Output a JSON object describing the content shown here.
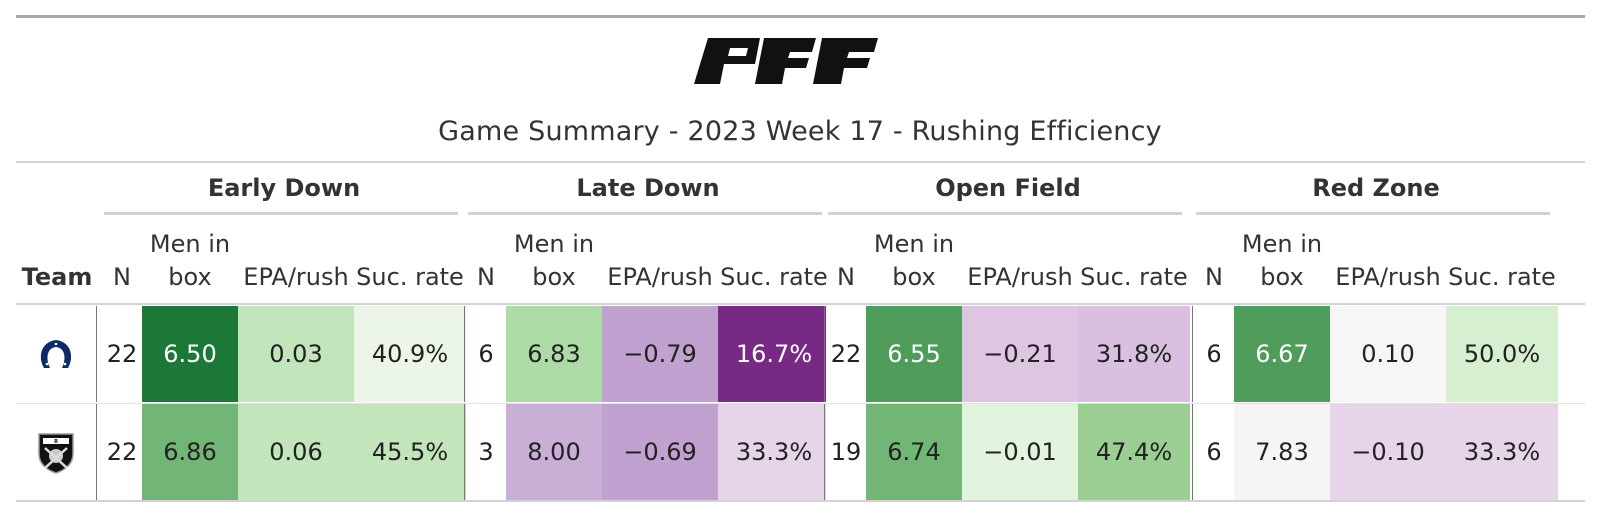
{
  "brand": "PFF",
  "title": "Game Summary - 2023 Week 17 - Rushing Efficiency",
  "team_header": "Team",
  "groups": [
    "Early Down",
    "Late Down",
    "Open Field",
    "Red Zone"
  ],
  "subheaders": {
    "n": "N",
    "men_in_box_line1": "Men in",
    "men_in_box_line2": "box",
    "epa": "EPA/rush",
    "suc": "Suc. rate"
  },
  "rows": [
    {
      "team": "Indianapolis Colts",
      "logo_icon": "colts-horseshoe-icon",
      "cells": [
        [
          "22",
          "6.50",
          "0.03",
          "40.9%"
        ],
        [
          "6",
          "6.83",
          "−0.79",
          "16.7%"
        ],
        [
          "22",
          "6.55",
          "−0.21",
          "31.8%"
        ],
        [
          "6",
          "6.67",
          "0.10",
          "50.0%"
        ]
      ],
      "colors": [
        [
          "#ffffff",
          "#1b7837",
          "#c3e5bc",
          "#ebf6e8"
        ],
        [
          "#ffffff",
          "#acdba5",
          "#c0a1d0",
          "#762a83"
        ],
        [
          "#ffffff",
          "#4f9c5b",
          "#dec6e3",
          "#dac0e0"
        ],
        [
          "#ffffff",
          "#4f9c5b",
          "#f6f6f6",
          "#d6efd1"
        ]
      ]
    },
    {
      "team": "Las Vegas Raiders",
      "logo_icon": "raiders-shield-icon",
      "cells": [
        [
          "22",
          "6.86",
          "0.06",
          "45.5%"
        ],
        [
          "3",
          "8.00",
          "−0.69",
          "33.3%"
        ],
        [
          "19",
          "6.74",
          "−0.01",
          "47.4%"
        ],
        [
          "6",
          "7.83",
          "−0.10",
          "33.3%"
        ]
      ],
      "colors": [
        [
          "#ffffff",
          "#71b674",
          "#c3e5bc",
          "#c3e5bc"
        ],
        [
          "#ffffff",
          "#c9afd6",
          "#c0a1d0",
          "#e6d5e9"
        ],
        [
          "#ffffff",
          "#71b674",
          "#e2f3de",
          "#9ace93"
        ],
        [
          "#ffffff",
          "#f5f5f5",
          "#e6d5e9",
          "#e6d5e9"
        ]
      ]
    }
  ],
  "text_colors": {
    "dark_bg": "#ffffff",
    "light_bg": "#222222"
  }
}
